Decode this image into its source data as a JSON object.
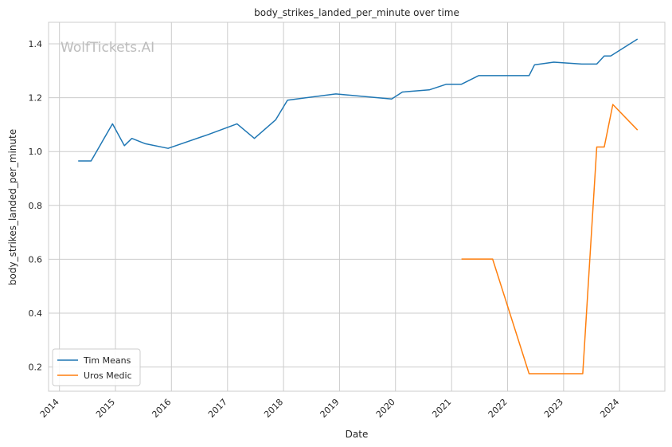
{
  "chart_data": {
    "type": "line",
    "title": "body_strikes_landed_per_minute over time",
    "xlabel": "Date",
    "ylabel": "body_strikes_landed_per_minute",
    "watermark": "WolfTickets.AI",
    "x_ticks": [
      "2014",
      "2015",
      "2016",
      "2017",
      "2018",
      "2019",
      "2020",
      "2021",
      "2022",
      "2023",
      "2024"
    ],
    "y_ticks": [
      "0.2",
      "0.4",
      "0.6",
      "0.8",
      "1.0",
      "1.2",
      "1.4"
    ],
    "xlim": [
      "2013-10-22",
      "2024-10-22"
    ],
    "ylim": [
      0.11,
      1.48
    ],
    "grid": true,
    "legend_position": "lower-left",
    "series": [
      {
        "name": "Tim Means",
        "color": "#1f77b4",
        "points": [
          {
            "x": "2014-05-03",
            "y": 0.965
          },
          {
            "x": "2014-07-26",
            "y": 0.965
          },
          {
            "x": "2014-12-13",
            "y": 1.103
          },
          {
            "x": "2015-02-28",
            "y": 1.022
          },
          {
            "x": "2015-04-18",
            "y": 1.049
          },
          {
            "x": "2015-07-15",
            "y": 1.029
          },
          {
            "x": "2015-12-10",
            "y": 1.012
          },
          {
            "x": "2016-08-27",
            "y": 1.063
          },
          {
            "x": "2017-03-04",
            "y": 1.103
          },
          {
            "x": "2017-06-25",
            "y": 1.049
          },
          {
            "x": "2017-11-11",
            "y": 1.118
          },
          {
            "x": "2018-01-27",
            "y": 1.191
          },
          {
            "x": "2018-12-08",
            "y": 1.214
          },
          {
            "x": "2019-12-07",
            "y": 1.195
          },
          {
            "x": "2020-02-15",
            "y": 1.221
          },
          {
            "x": "2020-08-08",
            "y": 1.229
          },
          {
            "x": "2020-11-28",
            "y": 1.25
          },
          {
            "x": "2021-03-06",
            "y": 1.25
          },
          {
            "x": "2021-06-26",
            "y": 1.282
          },
          {
            "x": "2022-05-21",
            "y": 1.282
          },
          {
            "x": "2022-06-25",
            "y": 1.322
          },
          {
            "x": "2022-10-29",
            "y": 1.332
          },
          {
            "x": "2023-04-29",
            "y": 1.325
          },
          {
            "x": "2023-08-05",
            "y": 1.325
          },
          {
            "x": "2023-09-23",
            "y": 1.355
          },
          {
            "x": "2023-11-04",
            "y": 1.355
          },
          {
            "x": "2024-04-27",
            "y": 1.418
          }
        ]
      },
      {
        "name": "Uros Medic",
        "color": "#ff7f0e",
        "points": [
          {
            "x": "2021-03-06",
            "y": 0.601
          },
          {
            "x": "2021-09-25",
            "y": 0.601
          },
          {
            "x": "2022-05-21",
            "y": 0.175
          },
          {
            "x": "2023-05-06",
            "y": 0.175
          },
          {
            "x": "2023-08-05",
            "y": 1.017
          },
          {
            "x": "2023-09-23",
            "y": 1.017
          },
          {
            "x": "2023-11-18",
            "y": 1.175
          },
          {
            "x": "2024-04-27",
            "y": 1.08
          }
        ]
      }
    ]
  }
}
